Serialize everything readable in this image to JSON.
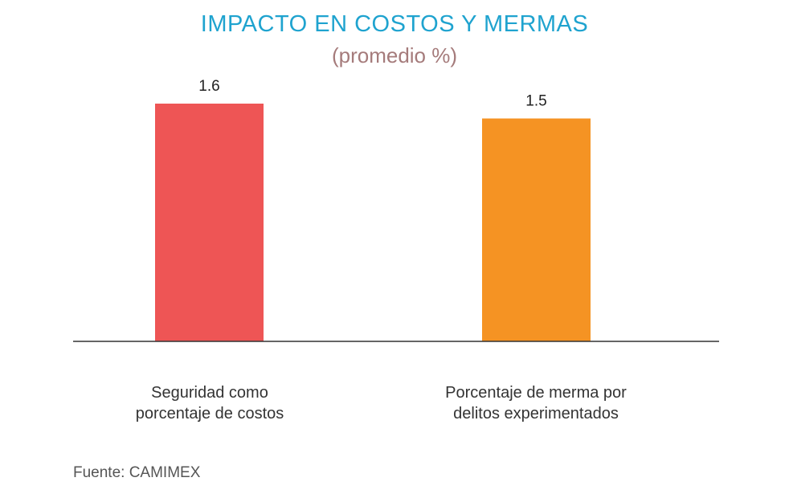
{
  "chart_data": {
    "type": "bar",
    "title": "IMPACTO EN COSTOS Y MERMAS",
    "subtitle": "(promedio %)",
    "categories": [
      "Seguridad como porcentaje de costos",
      "Porcentaje de merma por delitos experimentados"
    ],
    "category_lines": [
      [
        "Seguridad como",
        "porcentaje de costos"
      ],
      [
        "Porcentaje de merma por",
        "delitos experimentados"
      ]
    ],
    "values": [
      1.6,
      1.5
    ],
    "value_labels": [
      "1.6",
      "1.5"
    ],
    "colors": [
      "#ee5555",
      "#f59323"
    ],
    "xlabel": "",
    "ylabel": "",
    "ylim": [
      0,
      1.6
    ],
    "grid": false
  },
  "source": "Fuente: CAMIMEX",
  "colors": {
    "title": "#1fa3cf",
    "subtitle": "#a57b7b",
    "axis": "#333333"
  }
}
